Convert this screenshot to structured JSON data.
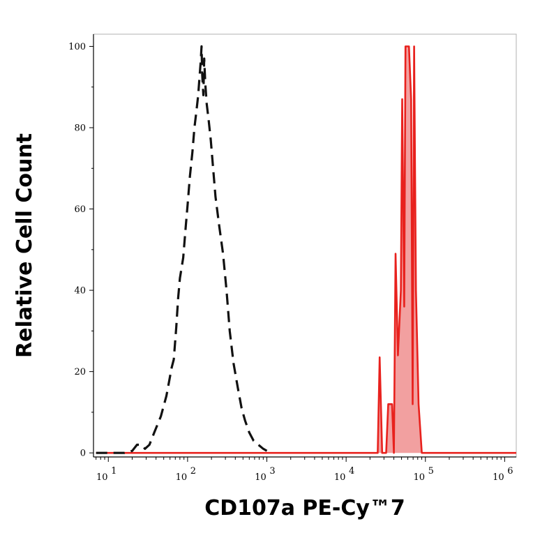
{
  "chart_data": {
    "type": "area",
    "xlabel": "CD107a PE-Cy™7",
    "ylabel": "Relative Cell Count",
    "xscale": "log",
    "xlim": [
      6.5,
      1400000
    ],
    "ylim": [
      -1,
      103
    ],
    "grid": false,
    "x_ticks": [
      {
        "value": 10,
        "base": "10",
        "exp": "1"
      },
      {
        "value": 100,
        "base": "10",
        "exp": "2"
      },
      {
        "value": 1000,
        "base": "10",
        "exp": "3"
      },
      {
        "value": 10000,
        "base": "10",
        "exp": "4"
      },
      {
        "value": 100000,
        "base": "10",
        "exp": "5"
      },
      {
        "value": 1000000,
        "base": "10",
        "exp": "6"
      }
    ],
    "y_ticks": [
      {
        "value": 0,
        "label": "0"
      },
      {
        "value": 20,
        "label": "20"
      },
      {
        "value": 40,
        "label": "40"
      },
      {
        "value": 60,
        "label": "60"
      },
      {
        "value": 80,
        "label": "80"
      },
      {
        "value": 100,
        "label": "100"
      }
    ],
    "series": [
      {
        "style": "dashed",
        "color": "#111111",
        "fill": "none",
        "points": [
          [
            7,
            0
          ],
          [
            16,
            0
          ],
          [
            20,
            0.5
          ],
          [
            23,
            2
          ],
          [
            26,
            2
          ],
          [
            29,
            1
          ],
          [
            33,
            2
          ],
          [
            38,
            5
          ],
          [
            46,
            9
          ],
          [
            54,
            14
          ],
          [
            63,
            21
          ],
          [
            67,
            23
          ],
          [
            72,
            31
          ],
          [
            76,
            38
          ],
          [
            80,
            43
          ],
          [
            88,
            48
          ],
          [
            95,
            56
          ],
          [
            100,
            61
          ],
          [
            107,
            68
          ],
          [
            115,
            74
          ],
          [
            122,
            80
          ],
          [
            129,
            84
          ],
          [
            136,
            88
          ],
          [
            141,
            92
          ],
          [
            146,
            96
          ],
          [
            150,
            100
          ],
          [
            153,
            93
          ],
          [
            158,
            88
          ],
          [
            162,
            97
          ],
          [
            167,
            91
          ],
          [
            174,
            86
          ],
          [
            184,
            82
          ],
          [
            196,
            77
          ],
          [
            210,
            70
          ],
          [
            225,
            63
          ],
          [
            250,
            56
          ],
          [
            280,
            49
          ],
          [
            310,
            40
          ],
          [
            340,
            30
          ],
          [
            380,
            22
          ],
          [
            430,
            16
          ],
          [
            480,
            11
          ],
          [
            530,
            8
          ],
          [
            600,
            5
          ],
          [
            680,
            3
          ],
          [
            780,
            2
          ],
          [
            900,
            1
          ],
          [
            1000,
            0.5
          ]
        ]
      },
      {
        "style": "solid",
        "color": "#e8211d",
        "fill": "#f2a0a0",
        "points": [
          [
            7,
            0
          ],
          [
            25000,
            0
          ],
          [
            26500,
            23.5
          ],
          [
            28500,
            0
          ],
          [
            32000,
            0
          ],
          [
            34000,
            12
          ],
          [
            38000,
            12
          ],
          [
            40000,
            0
          ],
          [
            42000,
            49
          ],
          [
            45000,
            24
          ],
          [
            49000,
            40
          ],
          [
            51000,
            87
          ],
          [
            54000,
            36
          ],
          [
            56000,
            100
          ],
          [
            62000,
            100
          ],
          [
            66000,
            87
          ],
          [
            69000,
            12
          ],
          [
            72000,
            100
          ],
          [
            76000,
            40
          ],
          [
            82000,
            12
          ],
          [
            90000,
            0
          ],
          [
            1400000,
            0
          ]
        ]
      }
    ]
  }
}
